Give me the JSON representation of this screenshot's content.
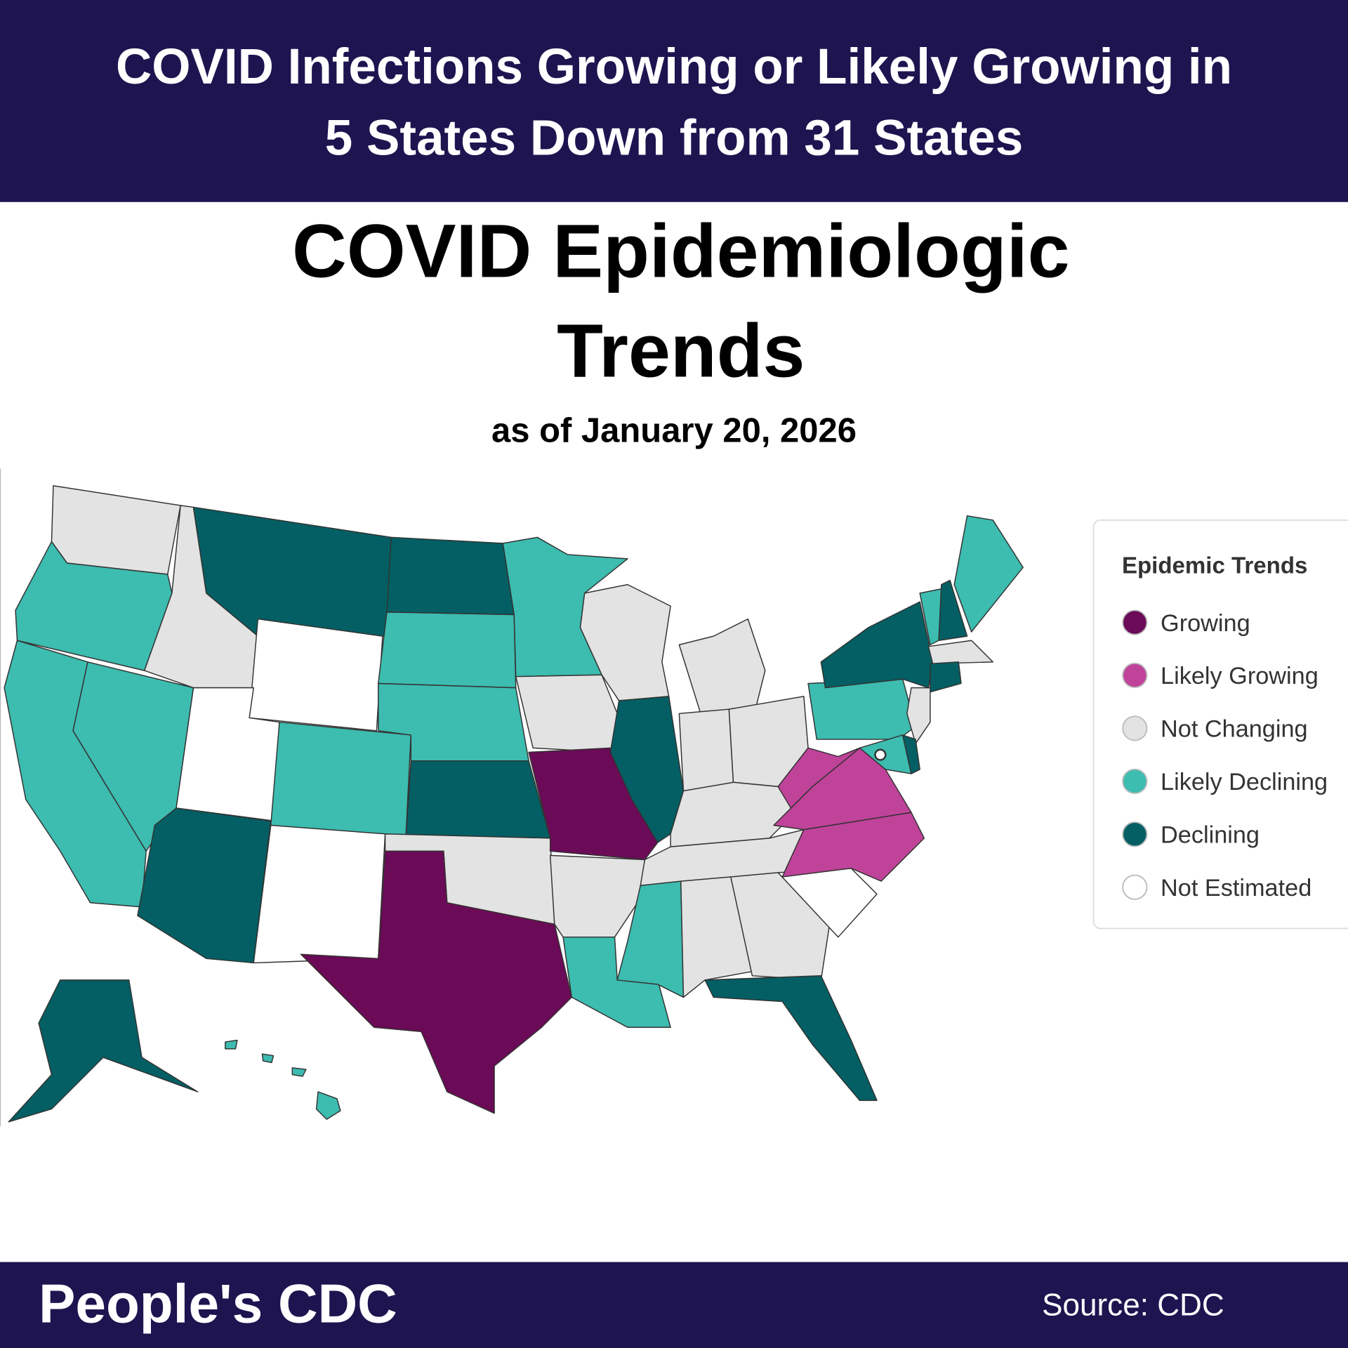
{
  "header": {
    "title_lines": [
      "COVID Infections Growing or Likely Growing in",
      "5 States Down from 31 States"
    ]
  },
  "map": {
    "title_lines": [
      "COVID Epidemiologic",
      "Trends"
    ],
    "subtitle": "as of January 20, 2026",
    "legend": {
      "title": "Epidemic Trends",
      "items": [
        {
          "name": "Growing",
          "color": "#6b0a56"
        },
        {
          "name": "Likely Growing",
          "color": "#c0439a"
        },
        {
          "name": "Not Changing",
          "color": "#e3e3e3"
        },
        {
          "name": "Likely Declining",
          "color": "#3dbcb0"
        },
        {
          "name": "Declining",
          "color": "#035f63"
        },
        {
          "name": "Not Estimated",
          "color": "#ffffff"
        }
      ]
    }
  },
  "footer": {
    "brand": "People's CDC",
    "source": "Source: CDC"
  }
}
